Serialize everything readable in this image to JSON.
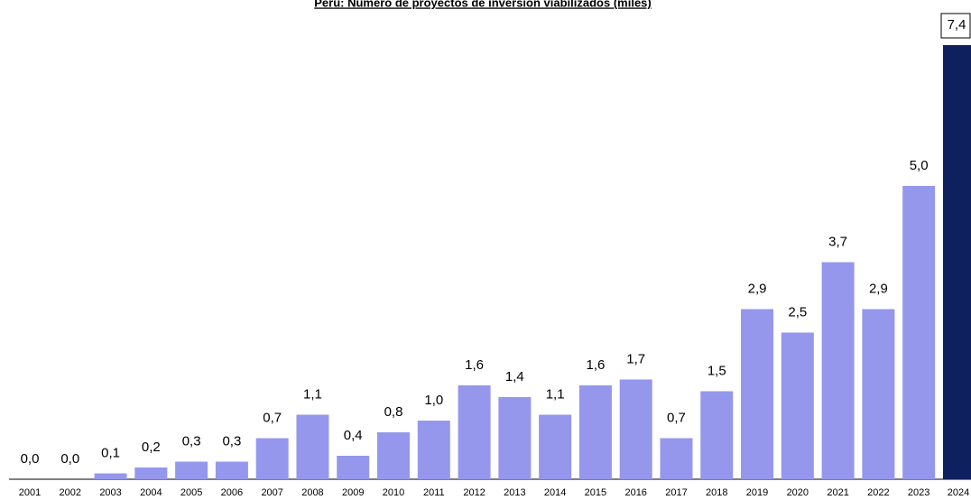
{
  "chart_data": {
    "type": "bar",
    "title": "Perú: Número de proyectos de inversión viabilizados (miles)",
    "categories": [
      "2001",
      "2002",
      "2003",
      "2004",
      "2005",
      "2006",
      "2007",
      "2008",
      "2009",
      "2010",
      "2011",
      "2012",
      "2013",
      "2014",
      "2015",
      "2016",
      "2017",
      "2018",
      "2019",
      "2020",
      "2021",
      "2022",
      "2023",
      "2024"
    ],
    "values": [
      0.0,
      0.0,
      0.1,
      0.2,
      0.3,
      0.3,
      0.7,
      1.1,
      0.4,
      0.8,
      1.0,
      1.6,
      1.4,
      1.1,
      1.6,
      1.7,
      0.7,
      1.5,
      2.9,
      2.5,
      3.7,
      2.9,
      5.0,
      7.4
    ],
    "value_labels": [
      "0,0",
      "0,0",
      "0,1",
      "0,2",
      "0,3",
      "0,3",
      "0,7",
      "1,1",
      "0,4",
      "0,8",
      "1,0",
      "1,6",
      "1,4",
      "1,1",
      "1,6",
      "1,7",
      "0,7",
      "1,5",
      "2,9",
      "2,5",
      "3,7",
      "2,9",
      "5,0",
      "7,4"
    ],
    "colors": [
      "#9597ec",
      "#9597ec",
      "#9597ec",
      "#9597ec",
      "#9597ec",
      "#9597ec",
      "#9597ec",
      "#9597ec",
      "#9597ec",
      "#9597ec",
      "#9597ec",
      "#9597ec",
      "#9597ec",
      "#9597ec",
      "#9597ec",
      "#9597ec",
      "#9597ec",
      "#9597ec",
      "#9597ec",
      "#9597ec",
      "#9597ec",
      "#9597ec",
      "#9597ec",
      "#0f205e"
    ]
  }
}
